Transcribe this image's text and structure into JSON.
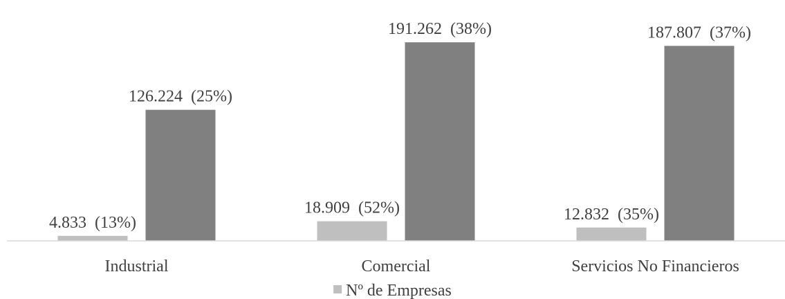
{
  "chart_data": {
    "type": "bar",
    "categories": [
      "Industrial",
      "Comercial",
      "Servicios No Financieros"
    ],
    "series": [
      {
        "name": "Nº de Empresas",
        "color": "#bfbfbf",
        "values": [
          4833,
          18909,
          12832
        ],
        "labels": [
          "4.833 (13%)",
          "18.909 (52%)",
          "12.832 (35%)"
        ]
      },
      {
        "color": "#808080",
        "values": [
          126224,
          191262,
          187807
        ],
        "labels": [
          "126.224 (25%)",
          "191.262 (38%)",
          "187.807 (37%)"
        ]
      }
    ],
    "ylim": [
      0,
      200000
    ],
    "grid": false,
    "legend": "bottom"
  }
}
